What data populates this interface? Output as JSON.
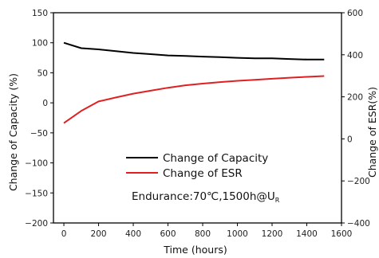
{
  "chart_data": {
    "type": "line",
    "xlabel": "Time (hours)",
    "ylabel_left": "Change of Capacity (%)",
    "ylabel_right": "Change of ESR(%)",
    "x_ticks": [
      "0",
      "200",
      "400",
      "600",
      "800",
      "1000",
      "1200",
      "1400",
      "1600"
    ],
    "y_left_ticks": [
      "150",
      "100",
      "50",
      "0",
      "−50",
      "−100",
      "−150",
      "−200"
    ],
    "y_right_ticks": [
      "600",
      "400",
      "200",
      "0",
      "−200",
      "−400"
    ],
    "xlim": [
      -60,
      1600
    ],
    "ylim_left": [
      -200,
      150
    ],
    "ylim_right": [
      -400,
      600
    ],
    "legend_placement": "center-bottom",
    "annotation": {
      "main": "Endurance:70℃,1500h@U",
      "sub": "R"
    },
    "series": [
      {
        "name": "Change of Capacity",
        "axis": "left",
        "color": "#000000",
        "x": [
          0,
          100,
          200,
          300,
          400,
          500,
          600,
          700,
          800,
          900,
          1000,
          1100,
          1200,
          1300,
          1400,
          1500
        ],
        "y": [
          100,
          91,
          89,
          86,
          83,
          81,
          79,
          78,
          77,
          76,
          75,
          74,
          74,
          73,
          72,
          72
        ]
      },
      {
        "name": "Change of ESR",
        "axis": "right",
        "color": "#e02020",
        "x": [
          0,
          100,
          200,
          300,
          400,
          500,
          600,
          700,
          800,
          900,
          1000,
          1100,
          1200,
          1300,
          1400,
          1500
        ],
        "y": [
          75,
          133,
          178,
          197,
          215,
          229,
          243,
          255,
          263,
          270,
          276,
          281,
          286,
          291,
          295,
          299
        ]
      }
    ]
  }
}
